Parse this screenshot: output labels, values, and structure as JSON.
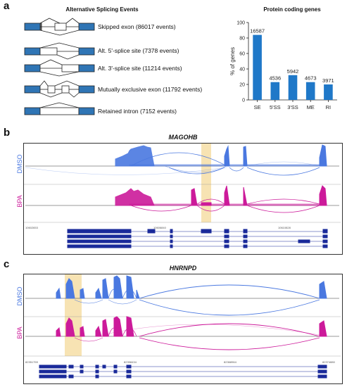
{
  "panel_a": {
    "letter": "a",
    "events_title": "Alternative Splicing Events",
    "events": [
      {
        "label": "Skipped exon (86017 events)"
      },
      {
        "label": "Alt. 5'-splice site (7378 events)"
      },
      {
        "label": "Alt. 3'-splice site (11214 events)"
      },
      {
        "label": "Mutually exclusive exon (11792 events)"
      },
      {
        "label": "Retained intron (7152 events)"
      }
    ],
    "colors": {
      "exon": "#2f75b5",
      "bar": "#1f78c8"
    }
  },
  "chart_data": {
    "type": "bar",
    "title": "Protein coding genes",
    "ylabel": "% of genes",
    "categories": [
      "SE",
      "5'SS",
      "3'SS",
      "ME",
      "RI"
    ],
    "values": [
      84,
      23,
      32,
      23,
      20
    ],
    "data_labels": [
      "16587",
      "4536",
      "5942",
      "4673",
      "3971"
    ],
    "ylim": [
      0,
      100
    ],
    "yticks": [
      "0",
      "20",
      "40",
      "60",
      "80",
      "100"
    ]
  },
  "panel_b": {
    "letter": "b",
    "gene": "MAGOHB",
    "track_top": "DMSO",
    "track_bottom": "BPA",
    "coords": [
      "10602653",
      "10606840",
      "10610828"
    ],
    "colors": {
      "dmso": "#4a78e0",
      "bpa": "#cc1a9a",
      "highlight": "#f5dca0",
      "gene_model": "#1a2a9a"
    }
  },
  "panel_c": {
    "letter": "c",
    "gene": "HNRNPD",
    "track_top": "DMSO",
    "track_bottom": "BPA",
    "coords": [
      "82351759",
      "82358434",
      "82368964",
      "82374880"
    ]
  }
}
